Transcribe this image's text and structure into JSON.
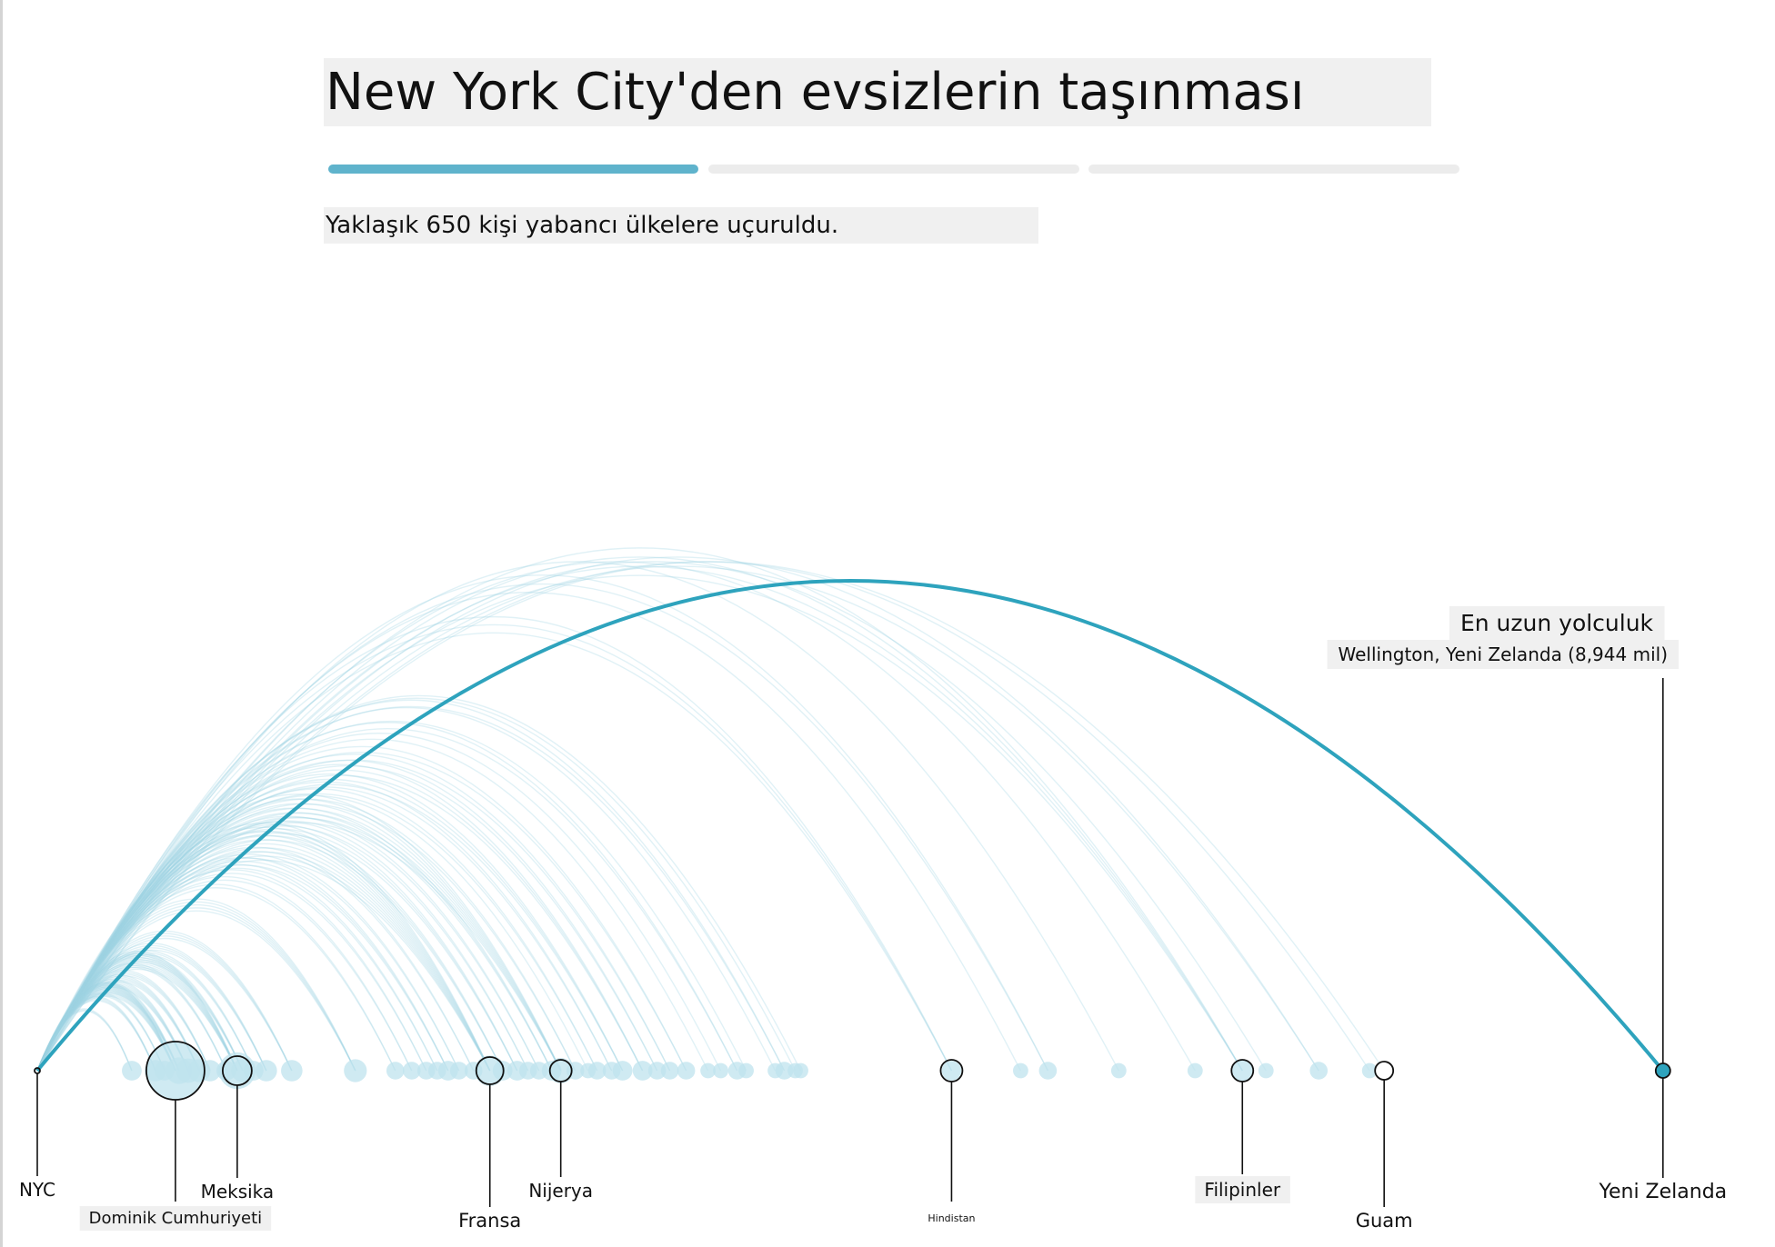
{
  "header": {
    "title": "New York City'den evsizlerin taşınması",
    "subtitle": "Yaklaşık 650 kişi yabancı ülkelere uçuruldu.",
    "steps": [
      {
        "active": true
      },
      {
        "active": false
      },
      {
        "active": false
      }
    ]
  },
  "colors": {
    "accent": "#2ea3bd",
    "arc_light": "#9fd3e3",
    "dot_fill": "#bfe3ee",
    "step_active": "#5fb3cc",
    "step_inactive": "#ececec",
    "label_bg": "#f0f0f0"
  },
  "chart_data": {
    "type": "arc",
    "origin": "NYC",
    "x_unit": "mil",
    "x_range": [
      0,
      9000
    ],
    "highlight": {
      "title": "En uzun yolculuk",
      "detail": "Wellington, Yeni Zelanda (8,944 mil)",
      "distance": 8944
    },
    "labeled_destinations": [
      {
        "name": "NYC",
        "distance": 0
      },
      {
        "name": "Dominik Cumhuriyeti",
        "distance": 760
      },
      {
        "name": "Meksika",
        "distance": 1100
      },
      {
        "name": "Fransa",
        "distance": 2490
      },
      {
        "name": "Nijerya",
        "distance": 2880
      },
      {
        "name": "Hindistan",
        "distance": 5030
      },
      {
        "name": "Filipinler",
        "distance": 6630
      },
      {
        "name": "Guam",
        "distance": 7410
      },
      {
        "name": "Yeni Zelanda",
        "distance": 8944
      }
    ],
    "destinations": [
      {
        "d": 520,
        "n": 3
      },
      {
        "d": 650,
        "n": 4
      },
      {
        "d": 700,
        "n": 3
      },
      {
        "d": 760,
        "n": 60
      },
      {
        "d": 780,
        "n": 8
      },
      {
        "d": 830,
        "n": 6
      },
      {
        "d": 890,
        "n": 5
      },
      {
        "d": 950,
        "n": 4
      },
      {
        "d": 1040,
        "n": 3
      },
      {
        "d": 1100,
        "n": 20
      },
      {
        "d": 1130,
        "n": 5
      },
      {
        "d": 1190,
        "n": 3
      },
      {
        "d": 1260,
        "n": 4
      },
      {
        "d": 1400,
        "n": 4
      },
      {
        "d": 1750,
        "n": 5
      },
      {
        "d": 1970,
        "n": 2
      },
      {
        "d": 2060,
        "n": 2
      },
      {
        "d": 2140,
        "n": 2
      },
      {
        "d": 2200,
        "n": 2
      },
      {
        "d": 2260,
        "n": 3
      },
      {
        "d": 2320,
        "n": 2
      },
      {
        "d": 2400,
        "n": 2
      },
      {
        "d": 2490,
        "n": 12
      },
      {
        "d": 2560,
        "n": 3
      },
      {
        "d": 2640,
        "n": 3
      },
      {
        "d": 2700,
        "n": 2
      },
      {
        "d": 2760,
        "n": 2
      },
      {
        "d": 2830,
        "n": 3
      },
      {
        "d": 2880,
        "n": 7
      },
      {
        "d": 2960,
        "n": 2
      },
      {
        "d": 3030,
        "n": 1
      },
      {
        "d": 3080,
        "n": 2
      },
      {
        "d": 3160,
        "n": 2
      },
      {
        "d": 3220,
        "n": 3
      },
      {
        "d": 3330,
        "n": 3
      },
      {
        "d": 3410,
        "n": 2
      },
      {
        "d": 3480,
        "n": 2
      },
      {
        "d": 3570,
        "n": 2
      },
      {
        "d": 3690,
        "n": 1
      },
      {
        "d": 3760,
        "n": 1
      },
      {
        "d": 3850,
        "n": 2
      },
      {
        "d": 3900,
        "n": 1
      },
      {
        "d": 4060,
        "n": 1
      },
      {
        "d": 4110,
        "n": 2
      },
      {
        "d": 4170,
        "n": 1
      },
      {
        "d": 4200,
        "n": 1
      },
      {
        "d": 5030,
        "n": 3
      },
      {
        "d": 5410,
        "n": 1
      },
      {
        "d": 5560,
        "n": 2
      },
      {
        "d": 5950,
        "n": 1
      },
      {
        "d": 6370,
        "n": 1
      },
      {
        "d": 6630,
        "n": 4
      },
      {
        "d": 6760,
        "n": 1
      },
      {
        "d": 7050,
        "n": 2
      },
      {
        "d": 7330,
        "n": 1
      },
      {
        "d": 7410,
        "n": 1
      },
      {
        "d": 8944,
        "n": 1
      }
    ]
  }
}
